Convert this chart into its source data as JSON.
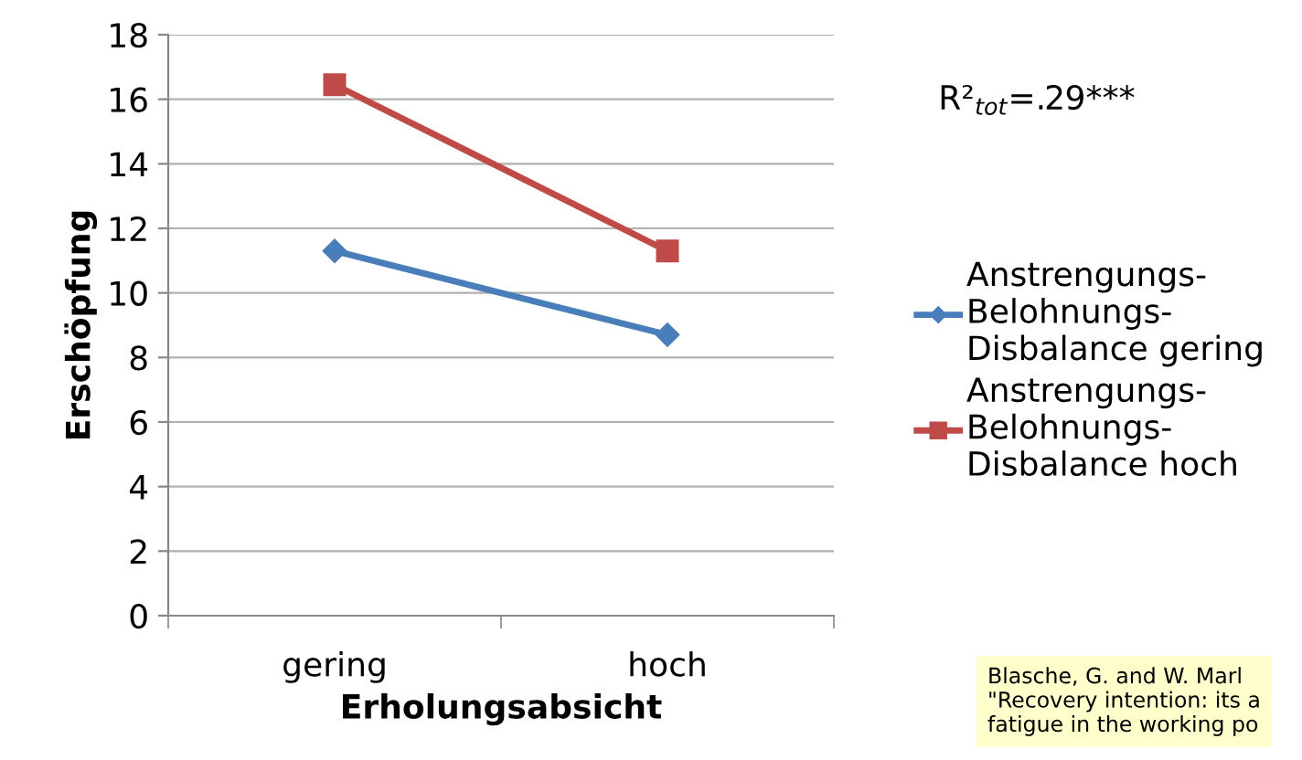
{
  "chart_data": {
    "type": "line",
    "xlabel": "Erholungsabsicht",
    "ylabel": "Erschöpfung",
    "categories": [
      "gering",
      "hoch"
    ],
    "series": [
      {
        "name": "Anstrengungs-\nBelohnungs-\nDisbalance gering",
        "color": "#4a7ebb",
        "marker": "diamond",
        "values": [
          11.3,
          8.7
        ]
      },
      {
        "name": "Anstrengungs-\nBelohnungs-\nDisbalance hoch",
        "color": "#be4b48",
        "marker": "square",
        "values": [
          16.45,
          11.3
        ]
      }
    ],
    "ylim": [
      0,
      18
    ],
    "yticks": [
      0,
      2,
      4,
      6,
      8,
      10,
      12,
      14,
      16,
      18
    ],
    "grid": "y",
    "legend": "right",
    "line_style": "solid",
    "annotations": [
      "R²$_{tot}$=.29***",
      "Blasche, G. and W. Marl\n\"Recovery intention: its a\nfatigue in the working po"
    ]
  }
}
